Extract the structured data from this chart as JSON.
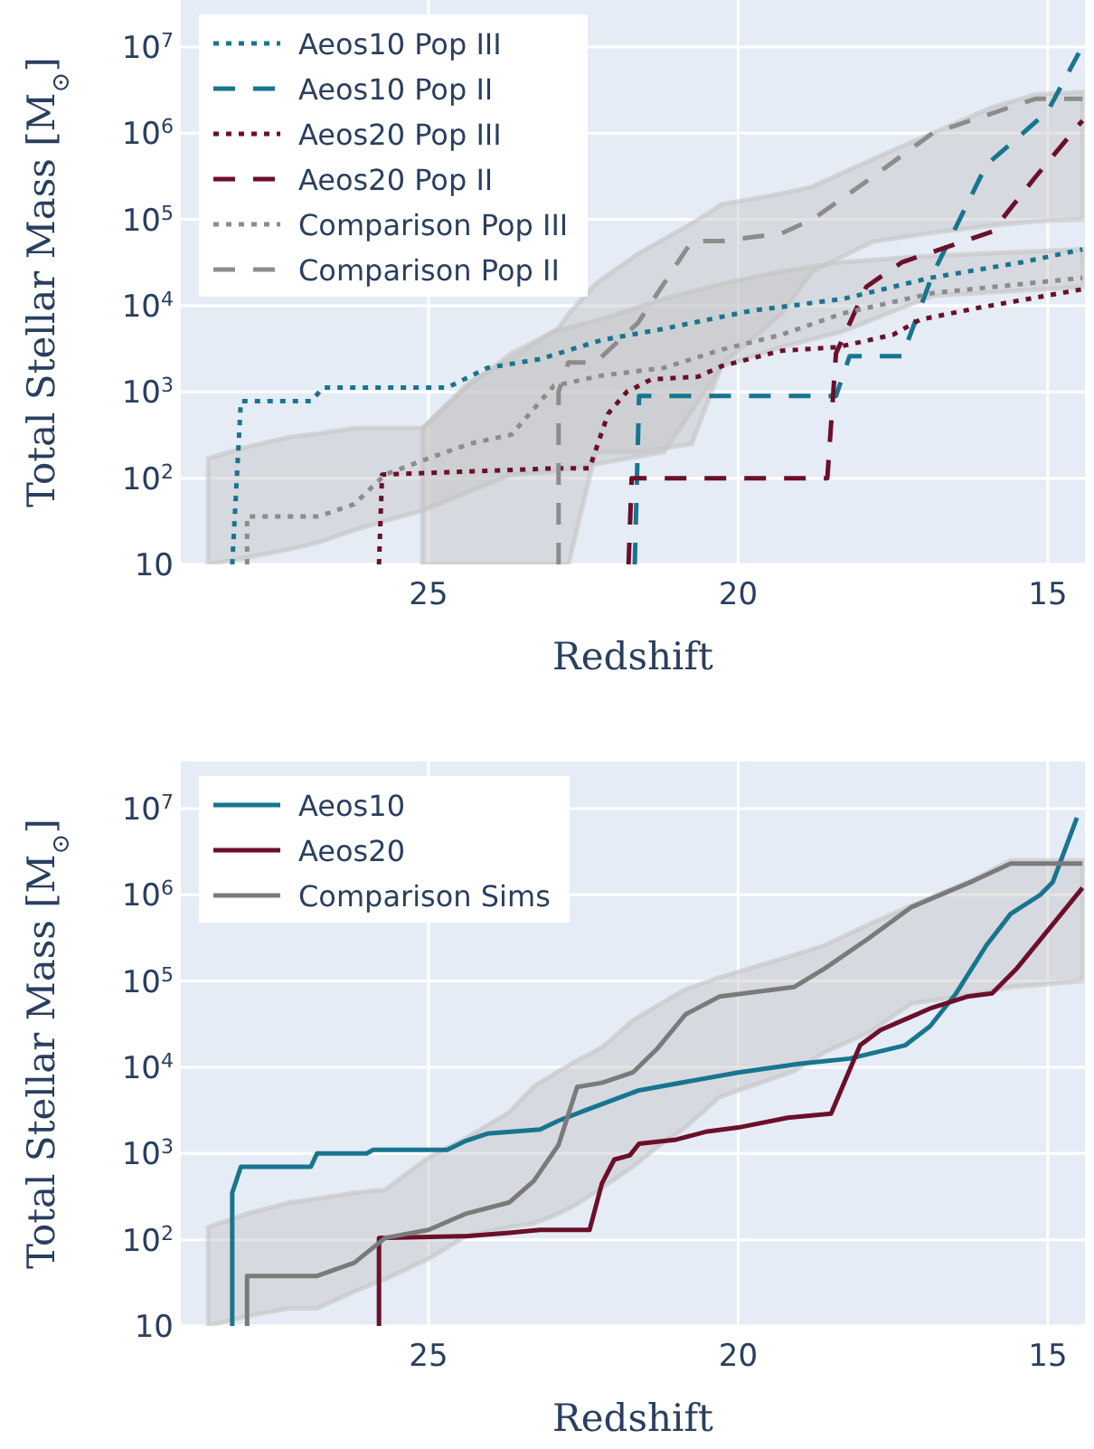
{
  "chart_data": [
    {
      "type": "line",
      "xlabel": "Redshift",
      "ylabel": "Total Stellar Mass [M$_{⊙}$]",
      "log": true,
      "grid": true,
      "legend": "top left",
      "xlim": [
        29,
        14.4
      ],
      "ylim": [
        10,
        35000000
      ],
      "xticks": [
        25,
        20,
        15
      ],
      "yticks": [
        10,
        {
          "value": 100,
          "label": "10$^{2}$"
        },
        {
          "value": 1000,
          "label": "10$^{3}$"
        },
        {
          "value": 10000,
          "label": "10$^{4}$"
        },
        {
          "value": 100000,
          "label": "10$^{5}$"
        },
        {
          "value": 1000000,
          "label": "10$^{6}$"
        },
        {
          "value": 10000000,
          "label": "10$^{7}$"
        }
      ],
      "series": [
        {
          "name": "Aeos10 Pop III",
          "color": "#18758f",
          "line_style": "dotted",
          "x": [
            28.17,
            28.03,
            26.9,
            26.7,
            24.7,
            24.05,
            23.2,
            22.2,
            21.2,
            19.8,
            18.3,
            16.9,
            15.4,
            14.44
          ],
          "values": [
            10,
            780,
            780,
            1120,
            1120,
            1900,
            2400,
            4000,
            5400,
            8700,
            12000,
            21000,
            32000,
            45000
          ]
        },
        {
          "name": "Aeos10 Pop II",
          "color": "#18758f",
          "line_style": "dashed",
          "x": [
            21.67,
            21.6,
            18.42,
            18.2,
            17.35,
            16.86,
            15.99,
            15.4,
            15.0,
            14.5
          ],
          "values": [
            10,
            900,
            900,
            2600,
            2600,
            23000,
            430000,
            1000000,
            1800000,
            8500000
          ]
        },
        {
          "name": "Aeos20 Pop III",
          "color": "#6b0f2a",
          "line_style": "dotted",
          "x": [
            25.8,
            25.75,
            22.98,
            22.4,
            22.1,
            21.8,
            21.4,
            20.65,
            20.26,
            19.3,
            18.4,
            17.5,
            17.06,
            16.1,
            14.44
          ],
          "values": [
            10,
            110,
            130,
            130,
            560,
            1000,
            1400,
            1500,
            2000,
            3000,
            3300,
            4600,
            6900,
            9500,
            15500
          ]
        },
        {
          "name": "Aeos20 Pop II",
          "color": "#6b0f2a",
          "line_style": "dashed",
          "x": [
            21.77,
            21.72,
            18.56,
            18.42,
            17.93,
            17.35,
            15.9,
            15.2,
            14.44
          ],
          "values": [
            10,
            100,
            100,
            2800,
            16600,
            32000,
            72000,
            310000,
            1400000
          ]
        },
        {
          "name": "Comparison Pop III",
          "color": "#8c8c8c",
          "line_style": "dotted",
          "x": [
            28.56,
            27.93,
            27.93,
            27.25,
            26.77,
            26.2,
            25.7,
            25.1,
            24.34,
            23.66,
            22.98,
            22.2,
            21.2,
            20.26,
            19.3,
            18.32,
            16.86,
            14.44
          ],
          "values": [
            null,
            10,
            36,
            36,
            36,
            50,
            110,
            160,
            250,
            320,
            1170,
            1550,
            1900,
            3100,
            4600,
            8100,
            14000,
            21000
          ],
          "lower": [
            10,
            12,
            12,
            15,
            18,
            25,
            32,
            42,
            70,
            110,
            120,
            150,
            200,
            2000,
            3300,
            5000,
            13000,
            16500
          ],
          "upper": [
            170,
            230,
            230,
            300,
            330,
            380,
            380,
            380,
            1200,
            2800,
            5000,
            7000,
            12000,
            18000,
            25000,
            32000,
            38000,
            45000
          ]
        },
        {
          "name": "Comparison Pop II",
          "color": "#8c8c8c",
          "line_style": "dashed",
          "x": [
            25.1,
            24.34,
            23.66,
            22.9,
            22.9,
            22.74,
            22.3,
            21.62,
            20.75,
            20.26,
            19.3,
            18.8,
            17.83,
            16.86,
            15.9,
            15.2,
            14.44
          ],
          "values": [
            null,
            null,
            null,
            10,
            1000,
            2200,
            2200,
            6300,
            56000,
            56000,
            69000,
            100000,
            310000,
            1000000,
            1700000,
            2500000,
            2500000
          ],
          "lower": [
            10,
            10,
            10,
            10,
            10,
            10,
            200,
            200,
            250,
            2100,
            8000,
            25000,
            55000,
            70000,
            85000,
            95000,
            100000
          ],
          "upper": [
            380,
            1300,
            2400,
            5500,
            5500,
            8000,
            18000,
            40000,
            90000,
            150000,
            200000,
            240000,
            500000,
            1000000,
            2000000,
            2800000,
            3000000
          ]
        }
      ]
    },
    {
      "type": "line",
      "xlabel": "Redshift",
      "ylabel": "Total Stellar Mass [M$_{⊙}$]",
      "log": true,
      "grid": true,
      "legend": "top left",
      "xlim": [
        29,
        14.4
      ],
      "ylim": [
        10,
        35000000
      ],
      "xticks": [
        25,
        20,
        15
      ],
      "yticks": [
        10,
        {
          "value": 100,
          "label": "10$^{2}$"
        },
        {
          "value": 1000,
          "label": "10$^{3}$"
        },
        {
          "value": 10000,
          "label": "10$^{4}$"
        },
        {
          "value": 100000,
          "label": "10$^{5}$"
        },
        {
          "value": 1000000,
          "label": "10$^{6}$"
        },
        {
          "value": 10000000,
          "label": "10$^{7}$"
        }
      ],
      "series": [
        {
          "name": "Aeos10",
          "color": "#18758f",
          "line_style": "solid",
          "x": [
            28.17,
            28.17,
            28.03,
            26.9,
            26.8,
            26.0,
            25.9,
            24.7,
            24.4,
            24.05,
            23.2,
            22.9,
            22.5,
            21.6,
            20.0,
            19.0,
            18.2,
            17.3,
            16.9,
            16.48,
            15.99,
            15.6,
            15.12,
            14.92,
            14.53
          ],
          "values": [
            10,
            350,
            700,
            700,
            1000,
            1000,
            1100,
            1100,
            1400,
            1700,
            1900,
            2400,
            3100,
            5400,
            8700,
            11000,
            12600,
            18000,
            30000,
            72000,
            260000,
            600000,
            1000000,
            1400000,
            7800000
          ]
        },
        {
          "name": "Aeos20",
          "color": "#6b0f2a",
          "line_style": "solid",
          "x": [
            25.8,
            25.8,
            24.4,
            23.7,
            23.2,
            22.4,
            22.2,
            22.0,
            21.75,
            21.6,
            21.0,
            20.5,
            20.0,
            19.2,
            18.5,
            18.03,
            17.7,
            17.3,
            16.9,
            16.3,
            15.9,
            15.5,
            14.44
          ],
          "values": [
            10,
            105,
            110,
            120,
            130,
            130,
            450,
            850,
            950,
            1300,
            1450,
            1800,
            2000,
            2600,
            2900,
            18000,
            27000,
            36000,
            48000,
            66000,
            72000,
            140000,
            1200000
          ]
        },
        {
          "name": "Comparison Sims",
          "color": "#7a7a7a",
          "line_style": "solid",
          "x": [
            28.56,
            27.93,
            27.93,
            27.25,
            26.8,
            26.2,
            25.7,
            25.0,
            24.4,
            23.7,
            23.3,
            22.9,
            22.6,
            22.2,
            21.7,
            21.3,
            20.85,
            20.3,
            19.1,
            18.6,
            17.9,
            17.2,
            16.2,
            15.6,
            14.44
          ],
          "values": [
            null,
            10,
            38,
            38,
            38,
            54,
            105,
            130,
            200,
            270,
            480,
            1260,
            5900,
            6600,
            8700,
            16600,
            41000,
            66000,
            85000,
            140000,
            310000,
            720000,
            1450000,
            2300000,
            2300000
          ],
          "lower": [
            10,
            13,
            13,
            16,
            16,
            25,
            35,
            60,
            110,
            140,
            155,
            200,
            260,
            400,
            700,
            1200,
            2000,
            4500,
            9000,
            15000,
            25000,
            55000,
            70000,
            85000,
            100000
          ],
          "upper": [
            140,
            200,
            200,
            270,
            300,
            350,
            380,
            900,
            1500,
            3000,
            6000,
            9000,
            12000,
            17000,
            35000,
            52000,
            80000,
            110000,
            200000,
            260000,
            450000,
            750000,
            1500000,
            2500000,
            2500000
          ]
        }
      ]
    }
  ]
}
